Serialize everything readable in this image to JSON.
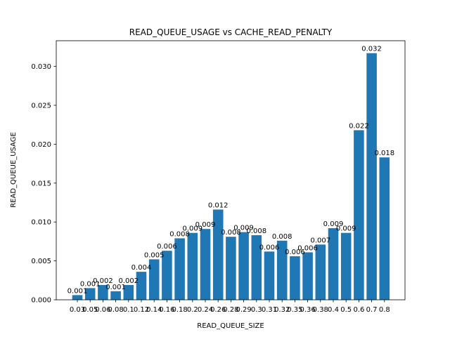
{
  "chart_data": {
    "type": "bar",
    "title": "READ_QUEUE_USAGE vs CACHE_READ_PENALTY",
    "xlabel": "READ_QUEUE_SIZE",
    "ylabel": "READ_QUEUE_USAGE",
    "ylim": [
      0,
      0.0333
    ],
    "yticks": [
      "0.000",
      "0.005",
      "0.010",
      "0.015",
      "0.020",
      "0.025",
      "0.030"
    ],
    "ytick_values": [
      0,
      0.005,
      0.01,
      0.015,
      0.02,
      0.025,
      0.03
    ],
    "categories": [
      "0.03",
      "0.05",
      "0.06",
      "0.08",
      "0.1",
      "0.12",
      "0.14",
      "0.16",
      "0.18",
      "0.2",
      "0.24",
      "0.26",
      "0.28",
      "0.29",
      "0.3",
      "0.31",
      "0.32",
      "0.35",
      "0.36",
      "0.38",
      "0.4",
      "0.5",
      "0.6",
      "0.7",
      "0.8"
    ],
    "values": [
      0.0006,
      0.0015,
      0.0019,
      0.0011,
      0.0019,
      0.0036,
      0.0052,
      0.0063,
      0.0079,
      0.0086,
      0.0091,
      0.0116,
      0.0081,
      0.0087,
      0.0083,
      0.0062,
      0.0076,
      0.0056,
      0.0061,
      0.0071,
      0.0092,
      0.0086,
      0.0218,
      0.0317,
      0.0183
    ],
    "data_labels": [
      "0.001",
      "0.001",
      "0.002",
      "0.001",
      "0.002",
      "0.004",
      "0.005",
      "0.006",
      "0.008",
      "0.009",
      "0.009",
      "0.012",
      "0.008",
      "0.009",
      "0.008",
      "0.006",
      "0.008",
      "0.006",
      "0.006",
      "0.007",
      "0.009",
      "0.009",
      "0.022",
      "0.032",
      "0.018"
    ],
    "bar_color": "#1f77b4",
    "grid": false,
    "legend": "none"
  }
}
